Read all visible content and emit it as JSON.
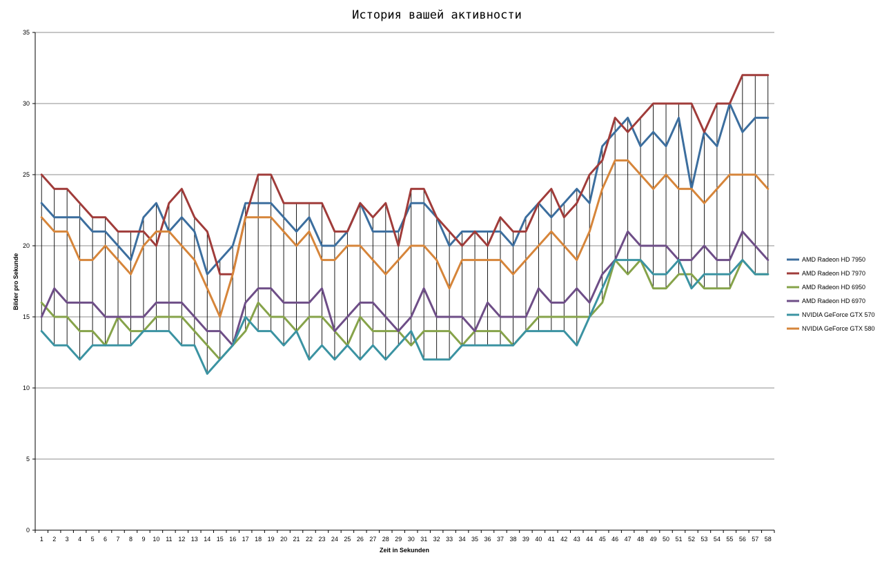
{
  "chart_data": {
    "type": "line",
    "title": "История вашей активности",
    "xlabel": "Zeit in Sekunden",
    "ylabel": "Bilder pro Sekunde",
    "ylim": [
      0,
      35
    ],
    "yticks": [
      0,
      5,
      10,
      15,
      20,
      25,
      30,
      35
    ],
    "grid": true,
    "drop_lines": true,
    "legend_position": "right",
    "x": [
      1,
      2,
      3,
      4,
      5,
      6,
      7,
      8,
      9,
      10,
      11,
      12,
      13,
      14,
      15,
      16,
      17,
      18,
      19,
      20,
      21,
      22,
      23,
      24,
      25,
      26,
      27,
      28,
      29,
      30,
      31,
      32,
      33,
      34,
      35,
      36,
      37,
      38,
      39,
      40,
      41,
      42,
      43,
      44,
      45,
      46,
      47,
      48,
      49,
      50,
      51,
      52,
      53,
      54,
      55,
      56,
      57,
      58
    ],
    "series": [
      {
        "name": "AMD Radeon HD 7950",
        "color": "#3c6e9e",
        "values": [
          23,
          22,
          22,
          22,
          21,
          21,
          20,
          19,
          22,
          23,
          21,
          22,
          21,
          18,
          19,
          20,
          23,
          23,
          23,
          22,
          21,
          22,
          20,
          20,
          21,
          23,
          21,
          21,
          21,
          23,
          23,
          22,
          20,
          21,
          21,
          21,
          21,
          20,
          22,
          23,
          22,
          23,
          24,
          23,
          27,
          28,
          29,
          27,
          28,
          27,
          29,
          24,
          28,
          27,
          30,
          28,
          29,
          29
        ]
      },
      {
        "name": "AMD Radeon HD 7970",
        "color": "#a03c3a",
        "values": [
          25,
          24,
          24,
          23,
          22,
          22,
          21,
          21,
          21,
          20,
          23,
          24,
          22,
          21,
          18,
          18,
          22,
          25,
          25,
          23,
          23,
          23,
          23,
          21,
          21,
          23,
          22,
          23,
          20,
          24,
          24,
          22,
          21,
          20,
          21,
          20,
          22,
          21,
          21,
          23,
          24,
          22,
          23,
          25,
          26,
          29,
          28,
          29,
          30,
          30,
          30,
          30,
          28,
          30,
          30,
          32,
          32,
          32
        ]
      },
      {
        "name": "AMD Radeon HD 6950",
        "color": "#86a34a",
        "values": [
          16,
          15,
          15,
          14,
          14,
          13,
          15,
          14,
          14,
          15,
          15,
          15,
          14,
          13,
          12,
          13,
          14,
          16,
          15,
          15,
          14,
          15,
          15,
          14,
          13,
          15,
          14,
          14,
          14,
          13,
          14,
          14,
          14,
          13,
          14,
          14,
          14,
          13,
          14,
          15,
          15,
          15,
          15,
          15,
          16,
          19,
          18,
          19,
          17,
          17,
          18,
          18,
          17,
          17,
          17,
          19,
          18,
          18
        ]
      },
      {
        "name": "AMD Radeon HD 6970",
        "color": "#6e4e87",
        "values": [
          15,
          17,
          16,
          16,
          16,
          15,
          15,
          15,
          15,
          16,
          16,
          16,
          15,
          14,
          14,
          13,
          16,
          17,
          17,
          16,
          16,
          16,
          17,
          14,
          15,
          16,
          16,
          15,
          14,
          15,
          17,
          15,
          15,
          15,
          14,
          16,
          15,
          15,
          15,
          17,
          16,
          16,
          17,
          16,
          18,
          19,
          21,
          20,
          20,
          20,
          19,
          19,
          20,
          19,
          19,
          21,
          20,
          19
        ]
      },
      {
        "name": "NVIDIA GeForce GTX 570",
        "color": "#3b93a2",
        "values": [
          14,
          13,
          13,
          12,
          13,
          13,
          13,
          13,
          14,
          14,
          14,
          13,
          13,
          11,
          12,
          13,
          15,
          14,
          14,
          13,
          14,
          12,
          13,
          12,
          13,
          12,
          13,
          12,
          13,
          14,
          12,
          12,
          12,
          13,
          13,
          13,
          13,
          13,
          14,
          14,
          14,
          14,
          13,
          15,
          17,
          19,
          19,
          19,
          18,
          18,
          19,
          17,
          18,
          18,
          18,
          19,
          18,
          18
        ]
      },
      {
        "name": "NVIDIA GeForce GTX 580",
        "color": "#d6853a",
        "values": [
          22,
          21,
          21,
          19,
          19,
          20,
          19,
          18,
          20,
          21,
          21,
          20,
          19,
          17,
          15,
          18,
          22,
          22,
          22,
          21,
          20,
          21,
          19,
          19,
          20,
          20,
          19,
          18,
          19,
          20,
          20,
          19,
          17,
          19,
          19,
          19,
          19,
          18,
          19,
          20,
          21,
          20,
          19,
          21,
          24,
          26,
          26,
          25,
          24,
          25,
          24,
          24,
          23,
          24,
          25,
          25,
          25,
          24
        ]
      }
    ]
  }
}
